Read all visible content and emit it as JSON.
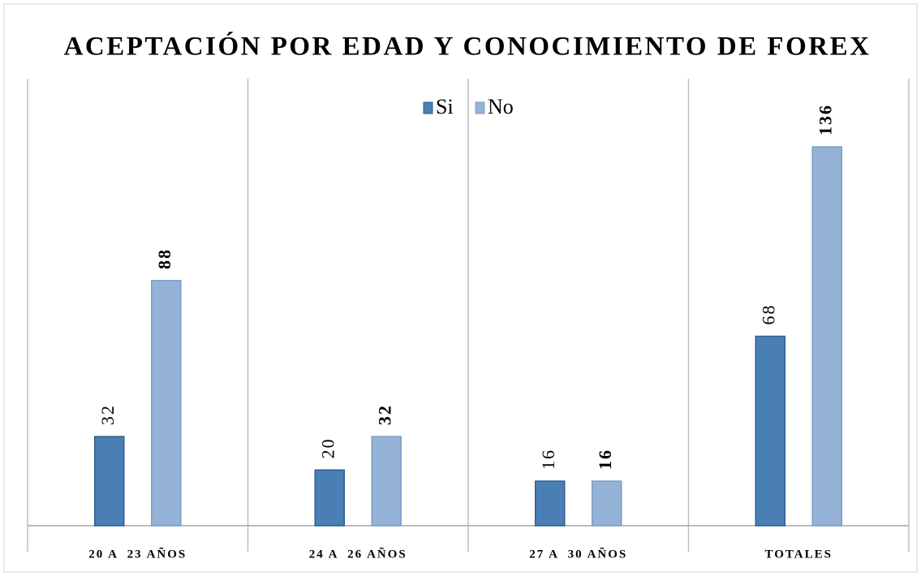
{
  "chart_data": {
    "type": "bar",
    "title": "ACEPTACIÓN POR EDAD Y CONOCIMIENTO DE FOREX",
    "categories": [
      "20 A  23 AÑOS",
      "24 A  26 AÑOS",
      "27 A  30 AÑOS",
      "TOTALES"
    ],
    "series": [
      {
        "name": "Si",
        "color": "#4a7fb5",
        "values": [
          32,
          20,
          16,
          68
        ]
      },
      {
        "name": "No",
        "color": "#95b3d7",
        "values": [
          88,
          32,
          16,
          136
        ]
      }
    ],
    "legend": "top"
  }
}
